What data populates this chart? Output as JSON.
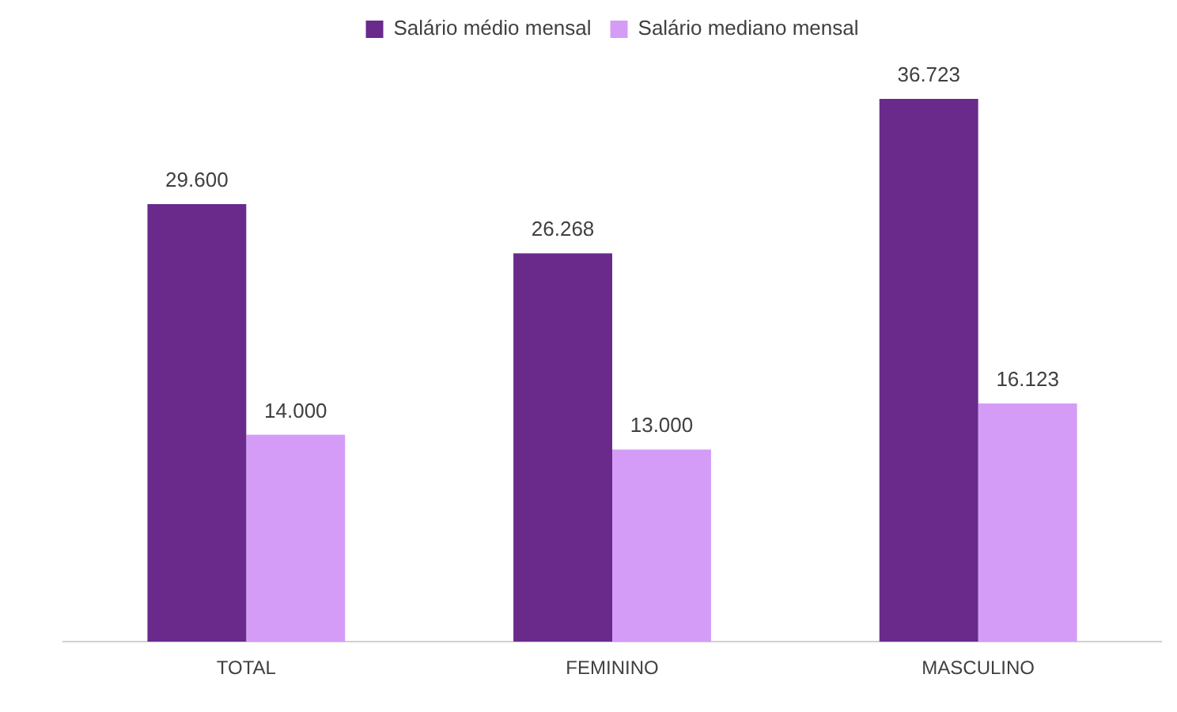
{
  "chart_data": {
    "type": "bar",
    "categories": [
      "TOTAL",
      "FEMININO",
      "MASCULINO"
    ],
    "series": [
      {
        "name": "Salário médio mensal",
        "color": "#6a2a8c",
        "values": [
          29600,
          26268,
          36723
        ],
        "value_labels": [
          "29.600",
          "26.268",
          "36.723"
        ]
      },
      {
        "name": "Salário mediano mensal",
        "color": "#d59cf7",
        "values": [
          14000,
          13000,
          16123
        ],
        "value_labels": [
          "14.000",
          "13.000",
          "16.123"
        ]
      }
    ],
    "legend": "top",
    "grid": false,
    "tick_labels": "x"
  }
}
